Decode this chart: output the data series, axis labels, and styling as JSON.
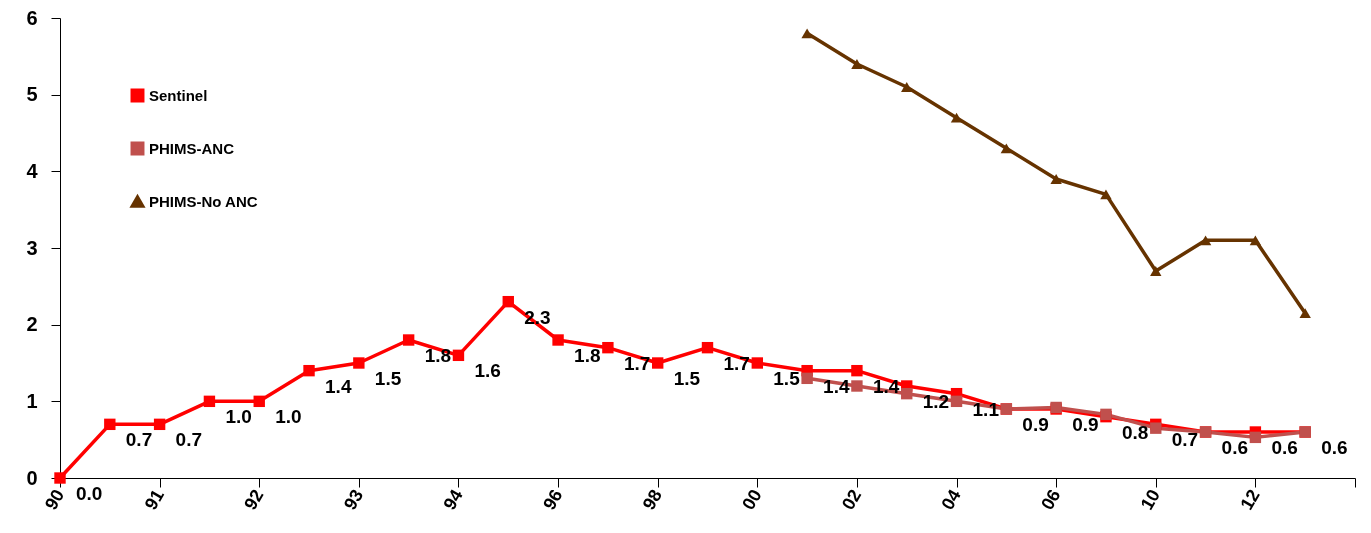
{
  "chart_data": {
    "type": "line",
    "categories": [
      "90",
      null,
      "91",
      null,
      "92",
      null,
      "93",
      null,
      "94",
      null,
      "96",
      null,
      "98",
      null,
      "00",
      null,
      "02",
      null,
      "04",
      null,
      "06",
      null,
      "10",
      null,
      "12",
      null,
      null
    ],
    "ylim": [
      0,
      6
    ],
    "yticks": [
      0,
      1,
      2,
      3,
      4,
      5,
      6
    ],
    "grid": false,
    "legend": "top left",
    "line_style": "solid",
    "series": [
      {
        "name": "Sentinel",
        "color": "#ff0000",
        "marker": "square",
        "values": [
          0.0,
          0.7,
          0.7,
          1.0,
          1.0,
          1.4,
          1.5,
          1.8,
          1.6,
          2.3,
          1.8,
          1.7,
          1.5,
          1.7,
          1.5,
          1.4,
          1.4,
          1.2,
          1.1,
          0.9,
          0.9,
          0.8,
          0.7,
          0.6,
          0.6,
          0.6,
          null
        ],
        "value_labels": [
          "0.0",
          "0.7",
          "0.7",
          "1.0",
          "1.0",
          "1.4",
          "1.5",
          "1.8",
          "1.6",
          "2.3",
          "1.8",
          "1.7",
          "1.5",
          "1.7",
          "1.5",
          "1.4",
          "1.4",
          "1.2",
          "1.1",
          "0.9",
          "0.9",
          "0.8",
          "0.7",
          "0.6",
          "0.6",
          "0.6",
          null
        ]
      },
      {
        "name": "PHIMS-ANC",
        "color": "#c0504d",
        "marker": "square",
        "values": [
          null,
          null,
          null,
          null,
          null,
          null,
          null,
          null,
          null,
          null,
          null,
          null,
          null,
          null,
          null,
          1.3,
          1.2,
          1.1,
          1.0,
          0.9,
          0.92,
          0.83,
          0.65,
          0.6,
          0.53,
          0.6,
          null
        ]
      },
      {
        "name": "PHIMS-No ANC",
        "color": "#663300",
        "marker": "triangle",
        "values": [
          null,
          null,
          null,
          null,
          null,
          null,
          null,
          null,
          null,
          null,
          null,
          null,
          null,
          null,
          null,
          5.8,
          5.4,
          5.1,
          4.7,
          4.3,
          3.9,
          3.7,
          2.7,
          3.1,
          3.1,
          2.15,
          null
        ]
      }
    ]
  }
}
